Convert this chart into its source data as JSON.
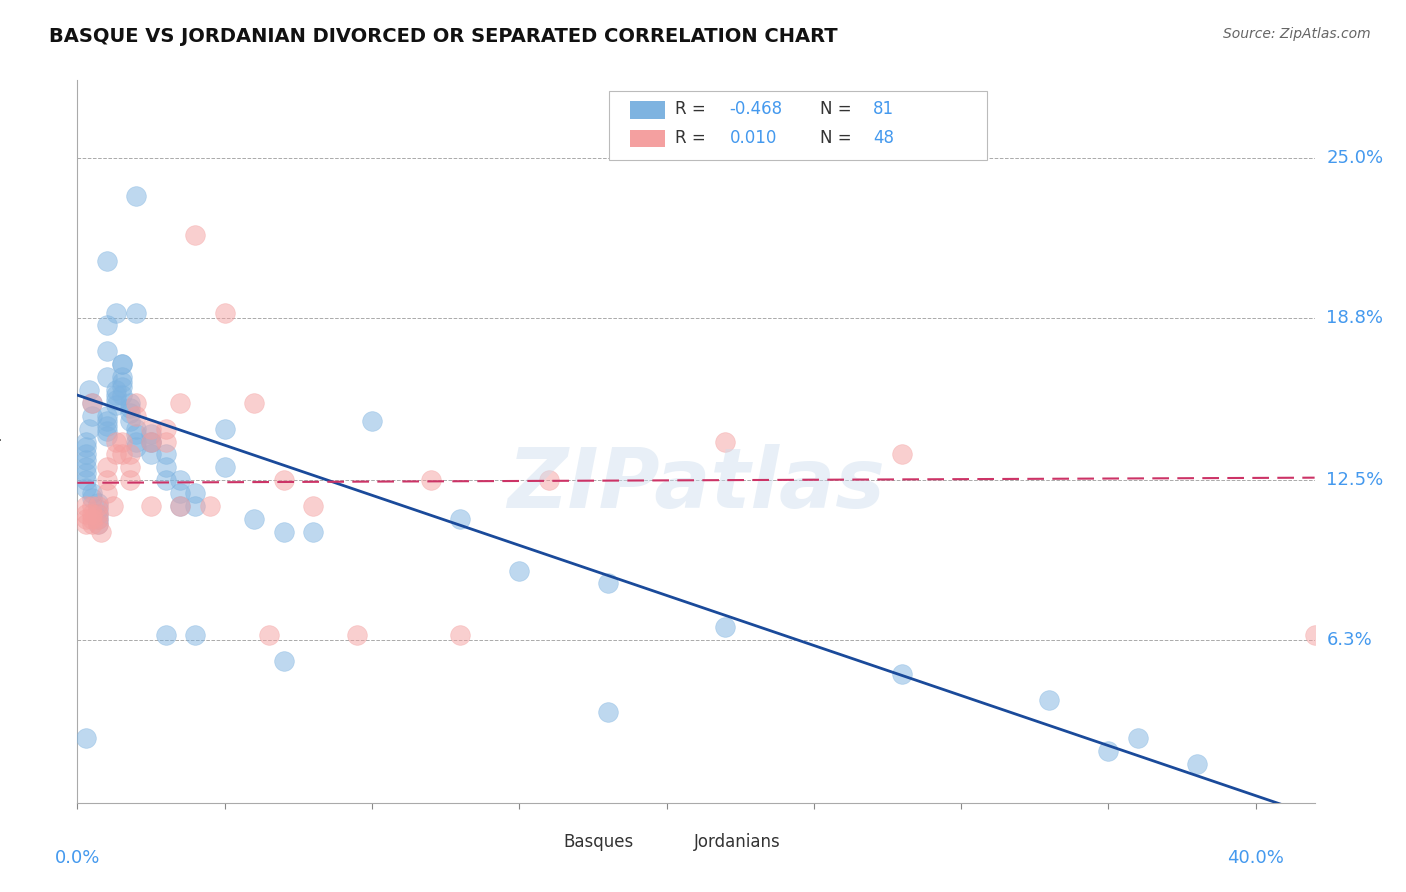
{
  "title": "BASQUE VS JORDANIAN DIVORCED OR SEPARATED CORRELATION CHART",
  "source": "Source: ZipAtlas.com",
  "ylabel": "Divorced or Separated",
  "ytick_labels": [
    "25.0%",
    "18.8%",
    "12.5%",
    "6.3%"
  ],
  "ytick_values": [
    0.25,
    0.188,
    0.125,
    0.063
  ],
  "xlim": [
    0.0,
    0.42
  ],
  "ylim": [
    0.0,
    0.28
  ],
  "blue_color": "#7EB3E0",
  "pink_color": "#F4A0A0",
  "line_blue_color": "#1A4A9A",
  "line_pink_color": "#CC3366",
  "label_color": "#4499EE",
  "text_dark": "#333333",
  "watermark": "ZIPatlas",
  "basque_x": [
    0.02,
    0.01,
    0.013,
    0.004,
    0.005,
    0.005,
    0.004,
    0.003,
    0.003,
    0.003,
    0.003,
    0.003,
    0.003,
    0.003,
    0.003,
    0.005,
    0.005,
    0.007,
    0.007,
    0.007,
    0.007,
    0.007,
    0.01,
    0.01,
    0.01,
    0.01,
    0.01,
    0.013,
    0.013,
    0.013,
    0.013,
    0.015,
    0.015,
    0.015,
    0.015,
    0.015,
    0.018,
    0.018,
    0.018,
    0.018,
    0.02,
    0.02,
    0.02,
    0.02,
    0.025,
    0.025,
    0.025,
    0.025,
    0.03,
    0.03,
    0.03,
    0.035,
    0.035,
    0.035,
    0.04,
    0.04,
    0.05,
    0.05,
    0.06,
    0.07,
    0.08,
    0.1,
    0.13,
    0.15,
    0.18,
    0.22,
    0.28,
    0.33,
    0.36,
    0.38,
    0.003,
    0.01,
    0.01,
    0.01,
    0.015,
    0.02,
    0.03,
    0.04,
    0.07,
    0.18,
    0.35
  ],
  "basque_y": [
    0.235,
    0.21,
    0.19,
    0.16,
    0.155,
    0.15,
    0.145,
    0.14,
    0.138,
    0.135,
    0.133,
    0.13,
    0.128,
    0.125,
    0.122,
    0.12,
    0.118,
    0.116,
    0.114,
    0.112,
    0.11,
    0.108,
    0.15,
    0.148,
    0.146,
    0.144,
    0.142,
    0.16,
    0.158,
    0.156,
    0.154,
    0.17,
    0.165,
    0.163,
    0.161,
    0.158,
    0.155,
    0.153,
    0.151,
    0.148,
    0.145,
    0.143,
    0.14,
    0.138,
    0.135,
    0.14,
    0.143,
    0.14,
    0.135,
    0.13,
    0.125,
    0.125,
    0.12,
    0.115,
    0.12,
    0.115,
    0.145,
    0.13,
    0.11,
    0.105,
    0.105,
    0.148,
    0.11,
    0.09,
    0.085,
    0.068,
    0.05,
    0.04,
    0.025,
    0.015,
    0.025,
    0.185,
    0.175,
    0.165,
    0.17,
    0.19,
    0.065,
    0.065,
    0.055,
    0.035,
    0.02
  ],
  "jordanian_x": [
    0.003,
    0.003,
    0.003,
    0.003,
    0.005,
    0.005,
    0.005,
    0.005,
    0.007,
    0.007,
    0.007,
    0.007,
    0.01,
    0.01,
    0.01,
    0.013,
    0.013,
    0.015,
    0.015,
    0.018,
    0.018,
    0.02,
    0.02,
    0.025,
    0.025,
    0.03,
    0.03,
    0.035,
    0.04,
    0.05,
    0.06,
    0.07,
    0.08,
    0.12,
    0.16,
    0.22,
    0.28,
    0.005,
    0.008,
    0.012,
    0.018,
    0.025,
    0.035,
    0.045,
    0.065,
    0.095,
    0.13,
    0.42
  ],
  "jordanian_y": [
    0.115,
    0.112,
    0.11,
    0.108,
    0.115,
    0.112,
    0.11,
    0.108,
    0.115,
    0.112,
    0.11,
    0.108,
    0.13,
    0.125,
    0.12,
    0.14,
    0.135,
    0.14,
    0.135,
    0.135,
    0.13,
    0.155,
    0.15,
    0.145,
    0.14,
    0.145,
    0.14,
    0.155,
    0.22,
    0.19,
    0.155,
    0.125,
    0.115,
    0.125,
    0.125,
    0.14,
    0.135,
    0.155,
    0.105,
    0.115,
    0.125,
    0.115,
    0.115,
    0.115,
    0.065,
    0.065,
    0.065,
    0.065
  ],
  "blue_line_x": [
    0.0,
    0.42
  ],
  "blue_line_y": [
    0.158,
    -0.005
  ],
  "pink_line_x": [
    0.0,
    0.42
  ],
  "pink_line_y": [
    0.124,
    0.126
  ]
}
